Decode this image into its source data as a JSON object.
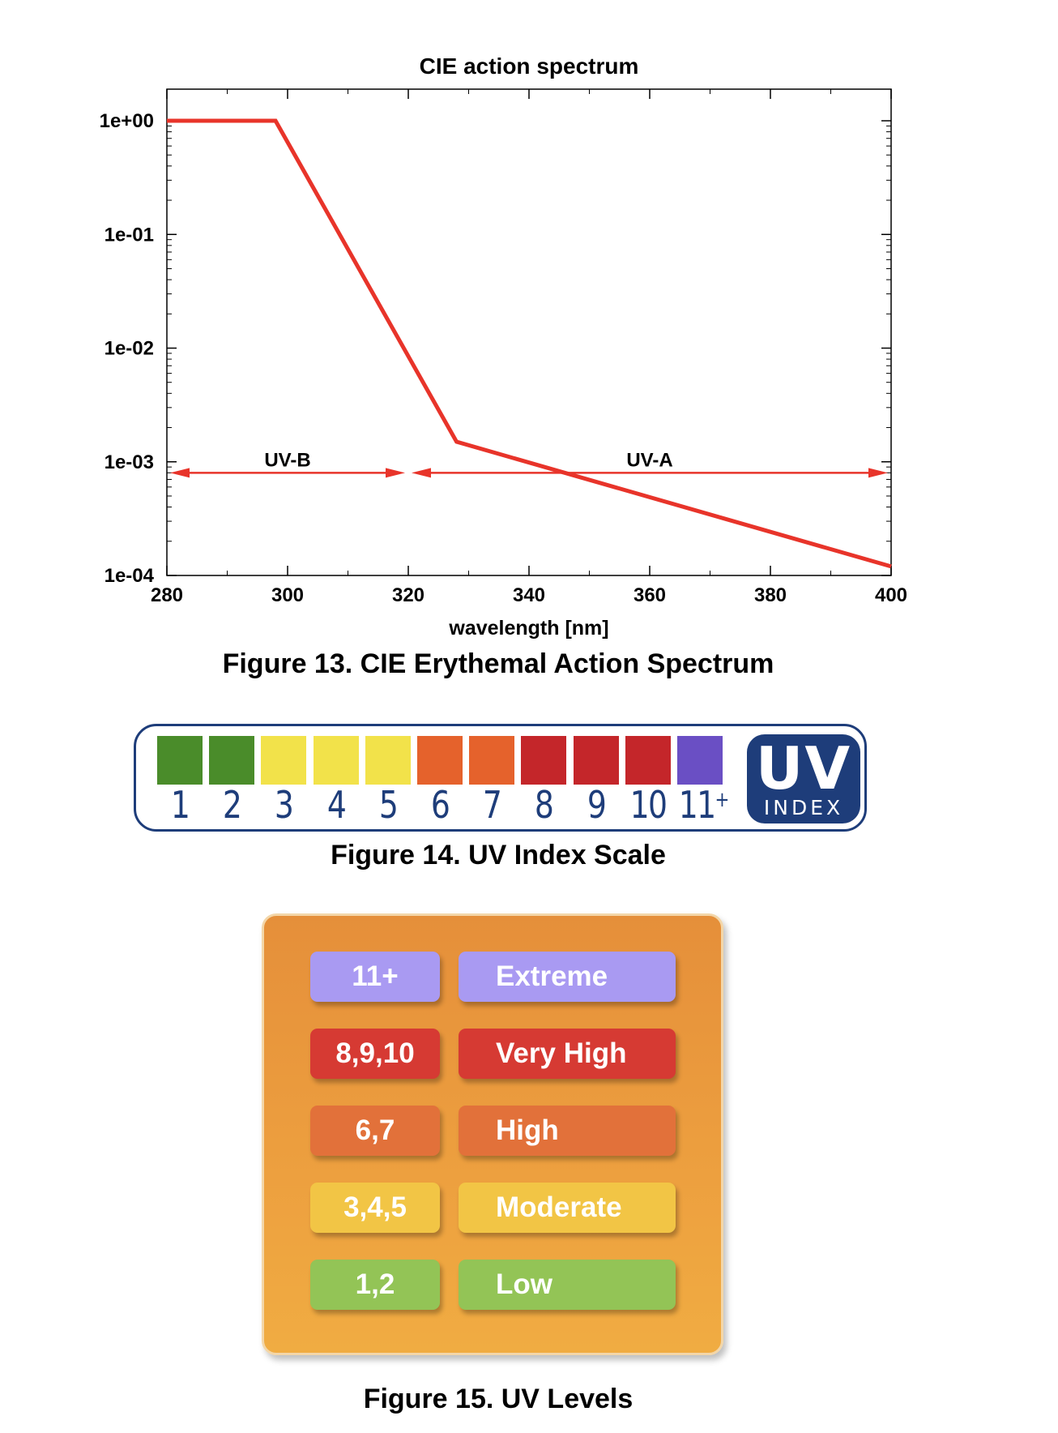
{
  "chart_data": {
    "type": "line",
    "title": "CIE action spectrum",
    "xlabel": "wavelength [nm]",
    "ylabel": "",
    "xlim": [
      280,
      400
    ],
    "ylim": [
      0.0001,
      1
    ],
    "yscale": "log",
    "x_ticks": [
      "280",
      "300",
      "320",
      "340",
      "360",
      "380",
      "400"
    ],
    "y_ticks": [
      "1e+00",
      "1e-01",
      "1e-02",
      "1e-03",
      "1e-04"
    ],
    "series": [
      {
        "color": "#e8342a",
        "x": [
          280,
          298,
          328,
          400
        ],
        "y": [
          1.0,
          1.0,
          0.0015,
          0.00012
        ]
      }
    ],
    "annotations": [
      {
        "text": "UV-B",
        "x_range": [
          280,
          320
        ],
        "y": 0.0008
      },
      {
        "text": "UV-A",
        "x_range": [
          320,
          400
        ],
        "y": 0.0008
      }
    ],
    "grid": false,
    "legend": "none"
  },
  "captions": {
    "fig13": "Figure 13. CIE Erythemal Action Spectrum",
    "fig14": "Figure 14. UV Index Scale",
    "fig15": "Figure 15. UV Levels"
  },
  "uv_scale": {
    "cells": [
      {
        "num": "1",
        "color": "#4a8c2a"
      },
      {
        "num": "2",
        "color": "#4a8c2a"
      },
      {
        "num": "3",
        "color": "#f2e24a"
      },
      {
        "num": "4",
        "color": "#f2e24a"
      },
      {
        "num": "5",
        "color": "#f2e24a"
      },
      {
        "num": "6",
        "color": "#e5622c"
      },
      {
        "num": "7",
        "color": "#e5622c"
      },
      {
        "num": "8",
        "color": "#c4262a"
      },
      {
        "num": "9",
        "color": "#c4262a"
      },
      {
        "num": "10",
        "color": "#c4262a"
      },
      {
        "num": "11",
        "plus": "+",
        "color": "#6a4fc4"
      }
    ],
    "logo_big": "UV",
    "logo_small": "INDEX",
    "logo_color": "#1e3d7a"
  },
  "uv_levels": [
    {
      "range": "11+",
      "label": "Extreme",
      "color": "#a99af2"
    },
    {
      "range": "8,9,10",
      "label": "Very High",
      "color": "#d63a33"
    },
    {
      "range": "6,7",
      "label": "High",
      "color": "#e2713a"
    },
    {
      "range": "3,4,5",
      "label": "Moderate",
      "color": "#f2c545"
    },
    {
      "range": "1,2",
      "label": "Low",
      "color": "#93c456"
    }
  ]
}
